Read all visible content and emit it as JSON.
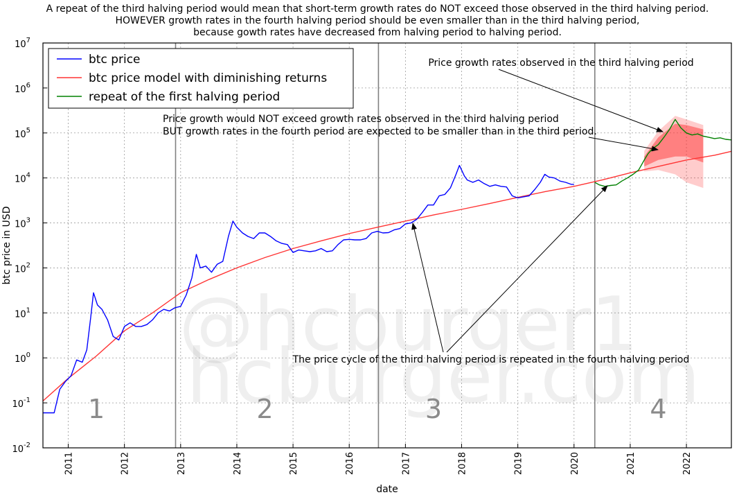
{
  "title_lines": [
    "A repeat of the third halving period would mean that short-term growth rates do NOT exceed those observed in the third halving period.",
    "HOWEVER growth rates in the fourth halving period should be even smaller than in the third halving period,",
    "because gowth rates have decreased from halving period to halving period."
  ],
  "watermark": [
    "@hcburger1",
    "hcburger.com"
  ],
  "annotations": {
    "top": "Price growth rates observed in the third halving period",
    "middle_1": "Price growth would NOT exceed growth rates observed in the third halving period",
    "middle_2": "BUT growth rates in the fourth period are expected to be smaller than in the third period.",
    "bottom": "The price cycle of the third halving period is repeated in the fourth halving period"
  },
  "colors": {
    "btc": "#0000ff",
    "model": "#ff3333",
    "repeat": "#008000",
    "band": "#ff3333",
    "halving_line": "#808080"
  },
  "chart_data": {
    "type": "line",
    "xlabel": "date",
    "ylabel": "btc price in USD",
    "xlim": [
      2010.55,
      2022.8
    ],
    "ylim_log10": [
      -2,
      7
    ],
    "y_scale": "log",
    "grid": true,
    "legend_position": "top-left",
    "x_ticks": [
      2011,
      2012,
      2013,
      2014,
      2015,
      2016,
      2017,
      2018,
      2019,
      2020,
      2021,
      2022
    ],
    "y_ticks": [
      {
        "base": "10",
        "exp": "-2"
      },
      {
        "base": "10",
        "exp": "-1"
      },
      {
        "base": "10",
        "exp": "0"
      },
      {
        "base": "10",
        "exp": "1"
      },
      {
        "base": "10",
        "exp": "2"
      },
      {
        "base": "10",
        "exp": "3"
      },
      {
        "base": "10",
        "exp": "4"
      },
      {
        "base": "10",
        "exp": "5"
      },
      {
        "base": "10",
        "exp": "6"
      },
      {
        "base": "10",
        "exp": "7"
      }
    ],
    "halvings": [
      2012.91,
      2016.52,
      2020.37
    ],
    "period_labels": [
      {
        "text": "1",
        "x": 2011.5
      },
      {
        "text": "2",
        "x": 2014.5
      },
      {
        "text": "3",
        "x": 2017.5
      },
      {
        "text": "4",
        "x": 2021.5
      }
    ],
    "series": [
      {
        "name": "btc price",
        "color": "#0000ff",
        "points": [
          [
            2010.55,
            0.06
          ],
          [
            2010.65,
            0.06
          ],
          [
            2010.75,
            0.06
          ],
          [
            2010.85,
            0.2
          ],
          [
            2010.95,
            0.3
          ],
          [
            2011.05,
            0.4
          ],
          [
            2011.15,
            0.9
          ],
          [
            2011.25,
            0.8
          ],
          [
            2011.33,
            1.5
          ],
          [
            2011.4,
            8
          ],
          [
            2011.45,
            28
          ],
          [
            2011.52,
            15
          ],
          [
            2011.6,
            12
          ],
          [
            2011.7,
            7
          ],
          [
            2011.8,
            3
          ],
          [
            2011.9,
            2.5
          ],
          [
            2012.0,
            5
          ],
          [
            2012.1,
            6
          ],
          [
            2012.2,
            5
          ],
          [
            2012.3,
            5
          ],
          [
            2012.4,
            5.5
          ],
          [
            2012.5,
            7
          ],
          [
            2012.6,
            10
          ],
          [
            2012.7,
            12
          ],
          [
            2012.8,
            11
          ],
          [
            2012.9,
            13
          ],
          [
            2013.0,
            14
          ],
          [
            2013.1,
            25
          ],
          [
            2013.2,
            60
          ],
          [
            2013.28,
            200
          ],
          [
            2013.35,
            100
          ],
          [
            2013.45,
            110
          ],
          [
            2013.55,
            80
          ],
          [
            2013.65,
            120
          ],
          [
            2013.75,
            140
          ],
          [
            2013.85,
            500
          ],
          [
            2013.93,
            1100
          ],
          [
            2014.0,
            800
          ],
          [
            2014.1,
            600
          ],
          [
            2014.2,
            500
          ],
          [
            2014.3,
            450
          ],
          [
            2014.4,
            600
          ],
          [
            2014.5,
            600
          ],
          [
            2014.6,
            500
          ],
          [
            2014.7,
            400
          ],
          [
            2014.8,
            350
          ],
          [
            2014.9,
            330
          ],
          [
            2015.0,
            220
          ],
          [
            2015.1,
            250
          ],
          [
            2015.2,
            240
          ],
          [
            2015.3,
            230
          ],
          [
            2015.4,
            240
          ],
          [
            2015.5,
            270
          ],
          [
            2015.6,
            230
          ],
          [
            2015.7,
            240
          ],
          [
            2015.8,
            330
          ],
          [
            2015.9,
            420
          ],
          [
            2016.0,
            430
          ],
          [
            2016.1,
            420
          ],
          [
            2016.2,
            420
          ],
          [
            2016.3,
            450
          ],
          [
            2016.4,
            600
          ],
          [
            2016.5,
            650
          ],
          [
            2016.6,
            600
          ],
          [
            2016.7,
            610
          ],
          [
            2016.8,
            700
          ],
          [
            2016.9,
            750
          ],
          [
            2017.0,
            950
          ],
          [
            2017.1,
            1000
          ],
          [
            2017.2,
            1200
          ],
          [
            2017.3,
            1700
          ],
          [
            2017.4,
            2500
          ],
          [
            2017.5,
            2500
          ],
          [
            2017.6,
            4000
          ],
          [
            2017.7,
            4300
          ],
          [
            2017.8,
            6000
          ],
          [
            2017.9,
            12000
          ],
          [
            2017.96,
            19000
          ],
          [
            2018.05,
            11000
          ],
          [
            2018.1,
            9000
          ],
          [
            2018.2,
            8000
          ],
          [
            2018.3,
            9000
          ],
          [
            2018.4,
            7500
          ],
          [
            2018.5,
            6500
          ],
          [
            2018.6,
            7000
          ],
          [
            2018.7,
            6500
          ],
          [
            2018.8,
            6300
          ],
          [
            2018.9,
            4000
          ],
          [
            2019.0,
            3600
          ],
          [
            2019.1,
            3800
          ],
          [
            2019.2,
            4000
          ],
          [
            2019.3,
            5500
          ],
          [
            2019.4,
            8000
          ],
          [
            2019.48,
            12000
          ],
          [
            2019.55,
            10500
          ],
          [
            2019.65,
            10000
          ],
          [
            2019.75,
            8500
          ],
          [
            2019.85,
            8000
          ],
          [
            2019.95,
            7200
          ],
          [
            2020.0,
            7200
          ]
        ]
      },
      {
        "name": "btc price model with diminishing returns",
        "color": "#ff3333",
        "points": [
          [
            2010.55,
            0.11
          ],
          [
            2011.0,
            0.35
          ],
          [
            2011.5,
            1.1
          ],
          [
            2012.0,
            4
          ],
          [
            2012.5,
            10
          ],
          [
            2013.0,
            28
          ],
          [
            2013.5,
            55
          ],
          [
            2014.0,
            100
          ],
          [
            2014.5,
            170
          ],
          [
            2015.0,
            270
          ],
          [
            2015.5,
            400
          ],
          [
            2016.0,
            580
          ],
          [
            2016.5,
            800
          ],
          [
            2017.0,
            1100
          ],
          [
            2017.5,
            1500
          ],
          [
            2018.0,
            2000
          ],
          [
            2018.5,
            2700
          ],
          [
            2019.0,
            3700
          ],
          [
            2019.5,
            5000
          ],
          [
            2020.0,
            6500
          ],
          [
            2020.5,
            9000
          ],
          [
            2021.0,
            13000
          ],
          [
            2021.5,
            18000
          ],
          [
            2022.0,
            25000
          ],
          [
            2022.5,
            32000
          ],
          [
            2022.8,
            39000
          ]
        ]
      },
      {
        "name": "repeat of the first halving period",
        "color": "#008000",
        "points": [
          [
            2020.37,
            8000
          ],
          [
            2020.45,
            7000
          ],
          [
            2020.55,
            6500
          ],
          [
            2020.65,
            6800
          ],
          [
            2020.75,
            7000
          ],
          [
            2020.85,
            8500
          ],
          [
            2020.95,
            10000
          ],
          [
            2021.05,
            12000
          ],
          [
            2021.15,
            15000
          ],
          [
            2021.25,
            25000
          ],
          [
            2021.32,
            35000
          ],
          [
            2021.4,
            45000
          ],
          [
            2021.5,
            55000
          ],
          [
            2021.6,
            80000
          ],
          [
            2021.7,
            120000
          ],
          [
            2021.8,
            200000
          ],
          [
            2021.9,
            130000
          ],
          [
            2022.0,
            100000
          ],
          [
            2022.1,
            90000
          ],
          [
            2022.2,
            95000
          ],
          [
            2022.3,
            85000
          ],
          [
            2022.4,
            80000
          ],
          [
            2022.5,
            75000
          ],
          [
            2022.6,
            78000
          ],
          [
            2022.7,
            72000
          ],
          [
            2022.8,
            70000
          ]
        ]
      }
    ],
    "growth_band": {
      "x_range": [
        2021.25,
        2022.3
      ],
      "inner": [
        [
          2021.25,
          18000,
          30000
        ],
        [
          2021.5,
          25000,
          80000
        ],
        [
          2021.8,
          30000,
          160000
        ],
        [
          2022.0,
          30000,
          150000
        ],
        [
          2022.3,
          22000,
          120000
        ]
      ],
      "outer": [
        [
          2021.25,
          14000,
          40000
        ],
        [
          2021.5,
          15000,
          110000
        ],
        [
          2021.8,
          12000,
          240000
        ],
        [
          2022.0,
          8000,
          200000
        ],
        [
          2022.3,
          6000,
          150000
        ]
      ]
    }
  }
}
